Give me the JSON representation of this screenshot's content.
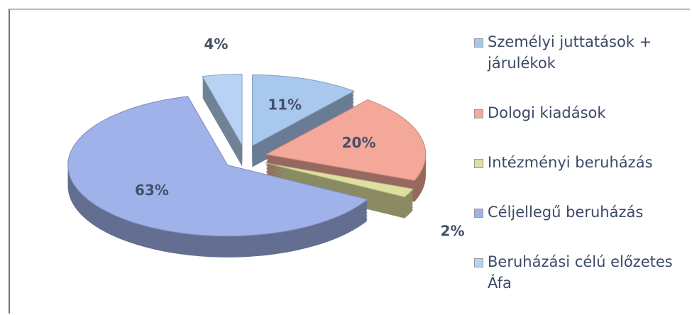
{
  "chart_data": {
    "type": "pie",
    "categories": [
      "Személyi juttatások + járulékok",
      "Dologi kiadások",
      "Intézményi beruházás",
      "Céljellegű beruházás",
      "Beruházási célú előzetes Áfa"
    ],
    "values": [
      11,
      20,
      2,
      63,
      4
    ],
    "value_labels": [
      "11%",
      "20%",
      "2%",
      "63%",
      "4%"
    ],
    "colors": [
      "#a9c8ee",
      "#f4a89a",
      "#dfe0a0",
      "#9fb2ea",
      "#b7d2f2"
    ],
    "legend": "right"
  }
}
